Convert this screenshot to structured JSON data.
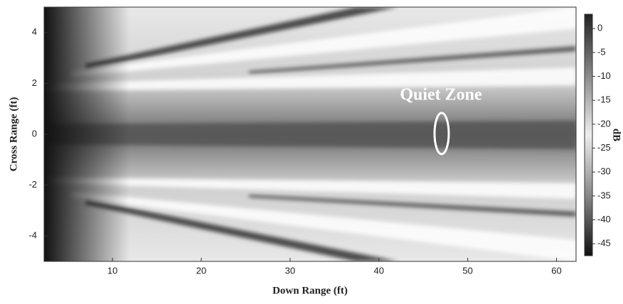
{
  "chart_data": {
    "type": "heatmap",
    "x_label": "Down Range (ft)",
    "y_label": "Cross Range (ft)",
    "xlim": [
      2.3,
      62.2
    ],
    "xticks": [
      10,
      20,
      30,
      40,
      50,
      60
    ],
    "ylim": [
      -5,
      5
    ],
    "yticks": [
      -4,
      -2,
      0,
      2,
      4
    ],
    "colorbar": {
      "label": "dB",
      "lim": [
        -47.5,
        3
      ],
      "ticks": [
        0,
        -5,
        -10,
        -15,
        -20,
        -25,
        -30,
        -35,
        -40,
        -45
      ]
    },
    "annotation": "Quiet Zone"
  }
}
